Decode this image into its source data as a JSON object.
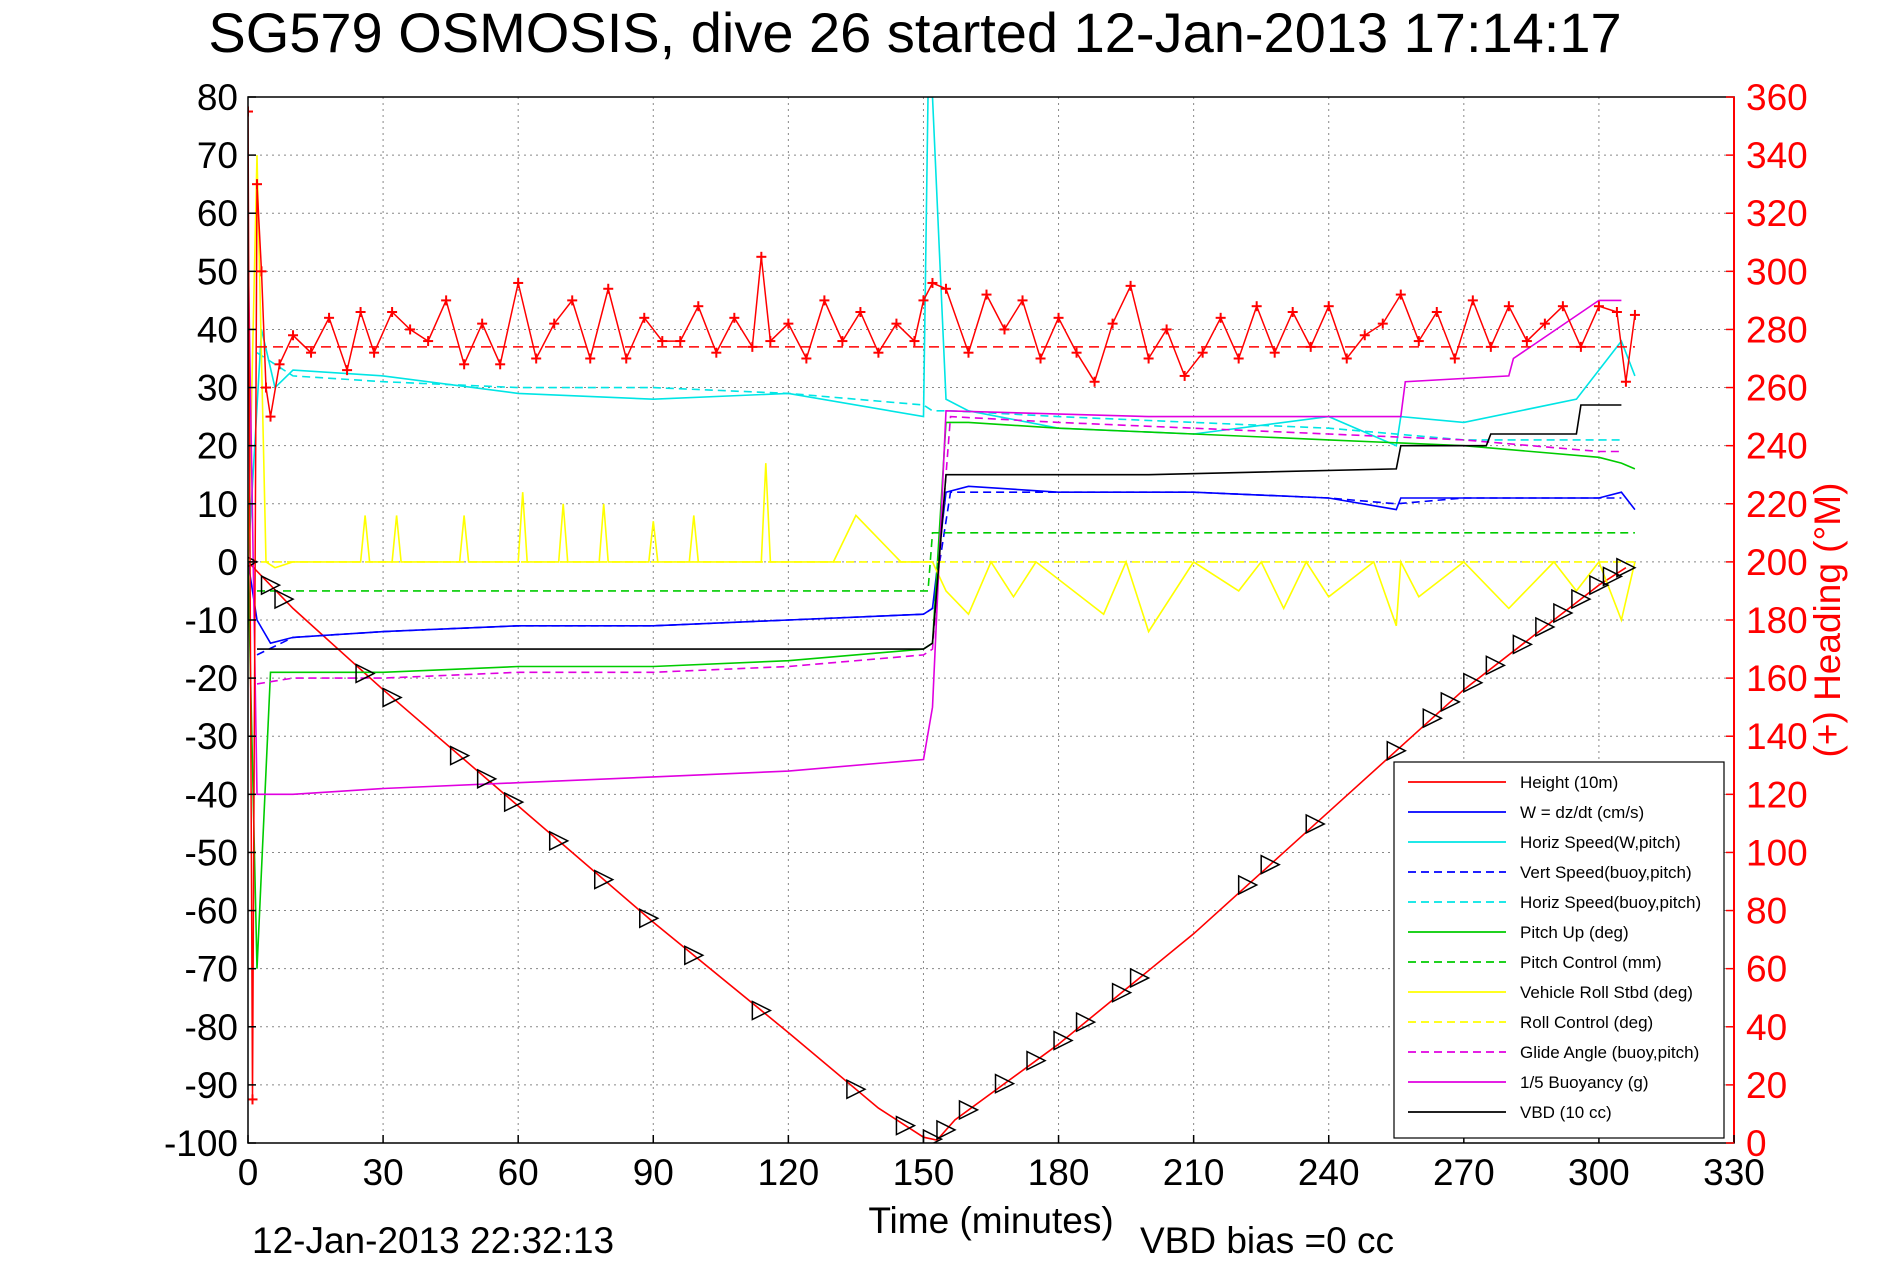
{
  "chart_data": {
    "type": "line",
    "title": "SG579 OSMOSIS, dive 26 started 12-Jan-2013 17:14:17",
    "xlabel": "Time (minutes)",
    "ylabel": "",
    "y2label": "(+) Heading (°M)",
    "xlim": [
      0,
      330
    ],
    "ylim": [
      -100,
      80
    ],
    "y2lim": [
      0,
      360
    ],
    "xticks": [
      "0",
      "30",
      "60",
      "90",
      "120",
      "150",
      "180",
      "210",
      "240",
      "270",
      "300",
      "330"
    ],
    "yticks": [
      "80",
      "70",
      "60",
      "50",
      "40",
      "30",
      "20",
      "10",
      "0",
      "-10",
      "-20",
      "-30",
      "-40",
      "-50",
      "-60",
      "-70",
      "-80",
      "-90",
      "-100"
    ],
    "y2ticks": [
      "360",
      "340",
      "320",
      "300",
      "280",
      "260",
      "240",
      "220",
      "200",
      "180",
      "160",
      "140",
      "120",
      "100",
      "80",
      "60",
      "40",
      "20",
      "0"
    ],
    "grid": true,
    "legend_position": "lower-right",
    "footer_left": "12-Jan-2013 22:32:13",
    "footer_right": "VBD bias =0 cc",
    "series": [
      {
        "name": "Height (10m)",
        "color": "#ff0000",
        "style": "solid",
        "x": [
          0,
          10,
          30,
          60,
          90,
          120,
          140,
          150,
          153,
          157,
          180,
          210,
          240,
          270,
          300,
          306
        ],
        "y": [
          0,
          -8,
          -22,
          -42,
          -62,
          -81,
          -94,
          -99,
          -99.5,
          -96,
          -83,
          -64,
          -43,
          -22,
          -4,
          -1
        ]
      },
      {
        "name": "W = dz/dt (cm/s)",
        "color": "#0000ff",
        "style": "solid",
        "x": [
          0,
          2,
          5,
          10,
          30,
          60,
          90,
          120,
          150,
          152,
          155,
          160,
          180,
          210,
          240,
          255,
          256,
          270,
          300,
          305,
          308
        ],
        "y": [
          0,
          -10,
          -14,
          -13,
          -12,
          -11,
          -11,
          -10,
          -9,
          -8,
          12,
          13,
          12,
          12,
          11,
          9,
          11,
          11,
          11,
          12,
          9
        ]
      },
      {
        "name": "Horiz Speed(W,pitch)",
        "color": "#00e5e5",
        "style": "solid",
        "x": [
          0,
          3,
          6,
          10,
          30,
          60,
          90,
          120,
          150,
          151,
          152,
          155,
          160,
          180,
          210,
          240,
          255,
          256,
          270,
          295,
          300,
          305,
          308
        ],
        "y": [
          0,
          40,
          30,
          33,
          32,
          29,
          28,
          29,
          25,
          80,
          80,
          28,
          26,
          23,
          22,
          25,
          20,
          25,
          24,
          28,
          33,
          38,
          32
        ]
      },
      {
        "name": "Vert Speed(buoy,pitch)",
        "color": "#0000ff",
        "style": "dashed",
        "x": [
          2,
          10,
          30,
          60,
          90,
          120,
          150,
          152,
          156,
          180,
          210,
          240,
          255,
          270,
          300,
          305
        ],
        "y": [
          -16,
          -13,
          -12,
          -11,
          -11,
          -10,
          -9,
          -8,
          12,
          12,
          12,
          11,
          10,
          11,
          11,
          11
        ]
      },
      {
        "name": "Horiz Speed(buoy,pitch)",
        "color": "#00e5e5",
        "style": "dashed",
        "x": [
          2,
          10,
          30,
          60,
          90,
          120,
          150,
          152,
          156,
          180,
          210,
          240,
          270,
          300,
          305
        ],
        "y": [
          36,
          32,
          31,
          30,
          30,
          29,
          27,
          26,
          26,
          25,
          24,
          23,
          21,
          21,
          21
        ]
      },
      {
        "name": "Pitch Up (deg)",
        "color": "#00cc00",
        "style": "solid",
        "x": [
          0,
          2,
          5,
          10,
          30,
          60,
          90,
          120,
          150,
          152,
          155,
          160,
          180,
          210,
          240,
          270,
          300,
          305,
          308
        ],
        "y": [
          0,
          -70,
          -19,
          -19,
          -19,
          -18,
          -18,
          -17,
          -15,
          -14,
          24,
          24,
          23,
          22,
          21,
          20,
          18,
          17,
          16
        ]
      },
      {
        "name": "Pitch Control (mm)",
        "color": "#00cc00",
        "style": "dashed",
        "x": [
          2,
          5,
          151,
          152,
          155,
          308
        ],
        "y": [
          -5,
          -5,
          -5,
          5,
          5,
          5
        ]
      },
      {
        "name": "Vehicle Roll Stbd (deg)",
        "color": "#ffff00",
        "style": "solid",
        "x": [
          0,
          2,
          4,
          6,
          10,
          25,
          26,
          27,
          32,
          33,
          34,
          47,
          48,
          49,
          60,
          61,
          62,
          69,
          70,
          71,
          78,
          79,
          80,
          89,
          90,
          91,
          98,
          99,
          100,
          114,
          115,
          116,
          130,
          135,
          145,
          150,
          152,
          155,
          160,
          165,
          170,
          175,
          190,
          195,
          200,
          210,
          220,
          225,
          230,
          235,
          240,
          250,
          255,
          256,
          260,
          270,
          280,
          290,
          295,
          300,
          305,
          308
        ],
        "y": [
          0,
          70,
          0,
          -1,
          0,
          0,
          8,
          0,
          0,
          8,
          0,
          0,
          8,
          0,
          0,
          12,
          0,
          0,
          10,
          0,
          0,
          10,
          0,
          0,
          7,
          0,
          0,
          8,
          0,
          0,
          17,
          0,
          0,
          8,
          0,
          0,
          0,
          -5,
          -9,
          0,
          -6,
          0,
          -9,
          0,
          -12,
          0,
          -5,
          0,
          -8,
          0,
          -6,
          0,
          -11,
          0,
          -6,
          0,
          -8,
          0,
          -5,
          0,
          -10,
          0
        ]
      },
      {
        "name": "Roll Control (deg)",
        "color": "#ffff00",
        "style": "dashed",
        "x": [
          0,
          150,
          152,
          308
        ],
        "y": [
          0,
          0,
          0,
          0
        ]
      },
      {
        "name": "Glide Angle (buoy,pitch)",
        "color": "#e000e0",
        "style": "dashed",
        "x": [
          2,
          10,
          30,
          60,
          90,
          120,
          150,
          152,
          156,
          180,
          210,
          240,
          270,
          300,
          305
        ],
        "y": [
          -21,
          -20,
          -20,
          -19,
          -19,
          -18,
          -16,
          -15,
          25,
          24,
          23,
          22,
          21,
          19,
          19
        ]
      },
      {
        "name": "1/5 Buoyancy (g)",
        "color": "#e000e0",
        "style": "solid",
        "x": [
          0,
          2,
          10,
          30,
          60,
          90,
          120,
          150,
          152,
          155,
          200,
          256,
          257,
          280,
          281,
          300,
          305
        ],
        "y": [
          55,
          -40,
          -40,
          -39,
          -38,
          -37,
          -36,
          -34,
          -25,
          26,
          25,
          25,
          31,
          32,
          35,
          45,
          45
        ]
      },
      {
        "name": "VBD (10 cc)",
        "color": "#000000",
        "style": "solid",
        "x": [
          2,
          10,
          60,
          150,
          152,
          155,
          200,
          255,
          256,
          275,
          276,
          295,
          296,
          305
        ],
        "y": [
          -15,
          -15,
          -15,
          -15,
          -14,
          15,
          15,
          16,
          20,
          20,
          22,
          22,
          27,
          27
        ]
      }
    ],
    "heading": {
      "name": "Heading",
      "color": "#ff0000",
      "mean": 274,
      "x": [
        0,
        1,
        2,
        3,
        4,
        5,
        7,
        10,
        14,
        18,
        22,
        25,
        28,
        32,
        36,
        40,
        44,
        48,
        52,
        56,
        60,
        64,
        68,
        72,
        76,
        80,
        84,
        88,
        92,
        96,
        100,
        104,
        108,
        112,
        114,
        116,
        120,
        124,
        128,
        132,
        136,
        140,
        144,
        148,
        150,
        152,
        155,
        160,
        164,
        168,
        172,
        176,
        180,
        184,
        188,
        192,
        196,
        200,
        204,
        208,
        212,
        216,
        220,
        224,
        228,
        232,
        236,
        240,
        244,
        248,
        252,
        256,
        260,
        264,
        268,
        272,
        276,
        280,
        284,
        288,
        292,
        296,
        300,
        304,
        306,
        308
      ],
      "y": [
        355,
        15,
        330,
        300,
        260,
        250,
        268,
        278,
        272,
        284,
        266,
        286,
        272,
        286,
        280,
        276,
        290,
        268,
        282,
        268,
        296,
        270,
        282,
        290,
        270,
        294,
        270,
        284,
        276,
        276,
        288,
        272,
        284,
        274,
        305,
        276,
        282,
        270,
        290,
        276,
        286,
        272,
        282,
        276,
        290,
        296,
        294,
        272,
        292,
        280,
        290,
        270,
        284,
        272,
        262,
        282,
        295,
        270,
        280,
        264,
        272,
        284,
        270,
        288,
        272,
        286,
        274,
        288,
        270,
        278,
        282,
        292,
        276,
        286,
        270,
        290,
        274,
        288,
        276,
        282,
        288,
        274,
        288,
        286,
        262,
        285
      ]
    },
    "markers": {
      "symbol": "triangle",
      "color": "#000000",
      "x": [
        0,
        5,
        8,
        26,
        32,
        47,
        53,
        59,
        69,
        79,
        89,
        99,
        114,
        135,
        146,
        152,
        155,
        160,
        168,
        175,
        181,
        186,
        194,
        198,
        222,
        227,
        237,
        255,
        263,
        267,
        272,
        277,
        283,
        288,
        292,
        296,
        300,
        303,
        306
      ]
    }
  }
}
